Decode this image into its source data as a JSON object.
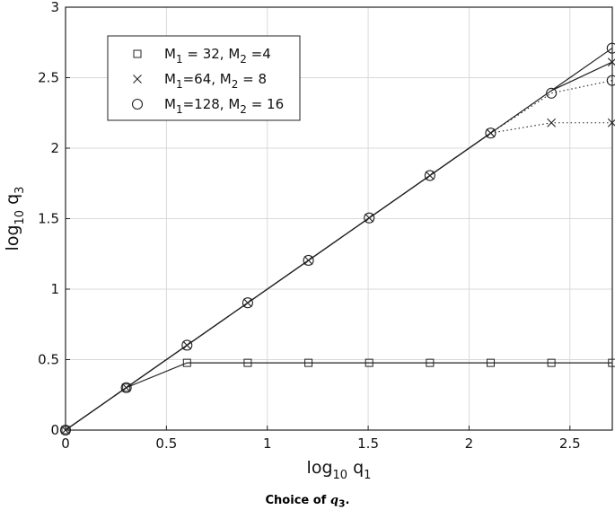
{
  "chart_data": {
    "type": "line",
    "xlabel": {
      "base": "log",
      "sub": "10",
      "var": "q",
      "varsub": "1"
    },
    "ylabel": {
      "base": "log",
      "sub": "10",
      "var": "q",
      "varsub": "3"
    },
    "xlim": [
      0,
      2.71
    ],
    "ylim": [
      0,
      3
    ],
    "xticks": [
      0,
      0.5,
      1,
      1.5,
      2,
      2.5
    ],
    "yticks": [
      0,
      0.5,
      1,
      1.5,
      2,
      2.5,
      3
    ],
    "xtick_labels": [
      "0",
      "0.5",
      "1",
      "1.5",
      "2",
      "2.5"
    ],
    "ytick_labels": [
      "0",
      "0.5",
      "1",
      "1.5",
      "2",
      "2.5",
      "3"
    ],
    "grid": true,
    "legend_position": "top-left",
    "reference_line": {
      "x": [
        0,
        2.709
      ],
      "y": [
        0,
        2.709
      ],
      "style": "solid"
    },
    "series": [
      {
        "name": "M_1 = 32, M_2 =4",
        "legend": [
          {
            "t": "M"
          },
          {
            "t": "1",
            "sub": true
          },
          {
            "t": " = 32, M"
          },
          {
            "t": "2",
            "sub": true
          },
          {
            "t": " =4"
          }
        ],
        "marker": "square",
        "x": [
          0,
          0.301,
          0.602,
          0.903,
          1.204,
          1.505,
          1.806,
          2.107,
          2.408,
          2.709
        ],
        "y": [
          0,
          0.301,
          0.477,
          0.477,
          0.477,
          0.477,
          0.477,
          0.477,
          0.477,
          0.477
        ],
        "solid_until_index": 9
      },
      {
        "name": "M_1=64, M_2 = 8",
        "legend": [
          {
            "t": "M"
          },
          {
            "t": "1",
            "sub": true
          },
          {
            "t": "=64, M"
          },
          {
            "t": "2",
            "sub": true
          },
          {
            "t": " = 8"
          }
        ],
        "marker": "x",
        "x": [
          0,
          0.301,
          0.602,
          0.903,
          1.204,
          1.505,
          1.806,
          2.107,
          2.408,
          2.709
        ],
        "y": [
          0,
          0.301,
          0.602,
          0.903,
          1.204,
          1.505,
          1.806,
          2.107,
          2.18,
          2.18
        ],
        "alt_solid_end": {
          "x": [
            2.408,
            2.709
          ],
          "y": [
            2.408,
            2.61
          ]
        },
        "solid_until_index": 7
      },
      {
        "name": "M_1=128, M_2 = 16",
        "legend": [
          {
            "t": "M"
          },
          {
            "t": "1",
            "sub": true
          },
          {
            "t": "=128, M"
          },
          {
            "t": "2",
            "sub": true
          },
          {
            "t": " = 16"
          }
        ],
        "marker": "circle",
        "x": [
          0,
          0.301,
          0.602,
          0.903,
          1.204,
          1.505,
          1.806,
          2.107,
          2.408,
          2.709
        ],
        "y": [
          0,
          0.301,
          0.602,
          0.903,
          1.204,
          1.505,
          1.806,
          2.107,
          2.39,
          2.48
        ],
        "extra_points": {
          "x": [
            2.709
          ],
          "y": [
            2.709
          ]
        },
        "solid_until_index": 7
      }
    ]
  },
  "caption": {
    "prefix": "Choice of ",
    "var": "q",
    "sub": "3",
    "suffix": "."
  }
}
